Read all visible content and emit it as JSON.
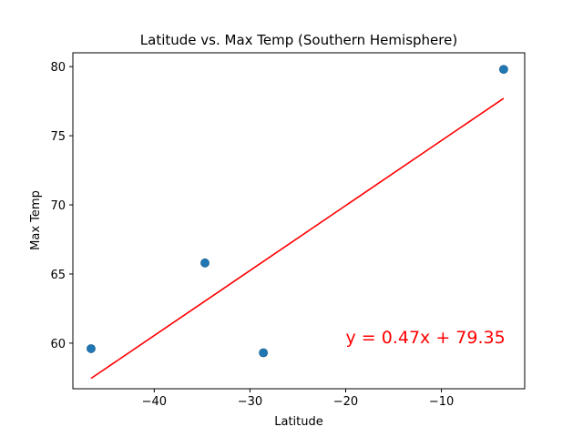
{
  "chart_data": {
    "type": "scatter",
    "title": "Latitude vs. Max Temp (Southern Hemisphere)",
    "xlabel": "Latitude",
    "ylabel": "Max Temp",
    "xlim": [
      -48.5,
      -1.3
    ],
    "ylim": [
      56.7,
      81.0
    ],
    "xticks": [
      -40,
      -30,
      -20,
      -10
    ],
    "xtick_labels": [
      "−40",
      "−30",
      "−20",
      "−10"
    ],
    "yticks": [
      60,
      65,
      70,
      75,
      80
    ],
    "ytick_labels": [
      "60",
      "65",
      "70",
      "75",
      "80"
    ],
    "grid": false,
    "points": [
      {
        "x": -46.6,
        "y": 59.6
      },
      {
        "x": -34.7,
        "y": 65.8
      },
      {
        "x": -28.6,
        "y": 59.3
      },
      {
        "x": -3.5,
        "y": 79.8
      }
    ],
    "regression": {
      "slope": 0.47,
      "intercept": 79.35,
      "x_range": [
        -46.6,
        -3.5
      ],
      "equation": "y = 0.47x + 79.35",
      "annotation_position": {
        "x": -20,
        "y": 60
      }
    },
    "colors": {
      "points": "#1f77b4",
      "line": "#ff0000",
      "annotation": "#ff0000"
    }
  }
}
